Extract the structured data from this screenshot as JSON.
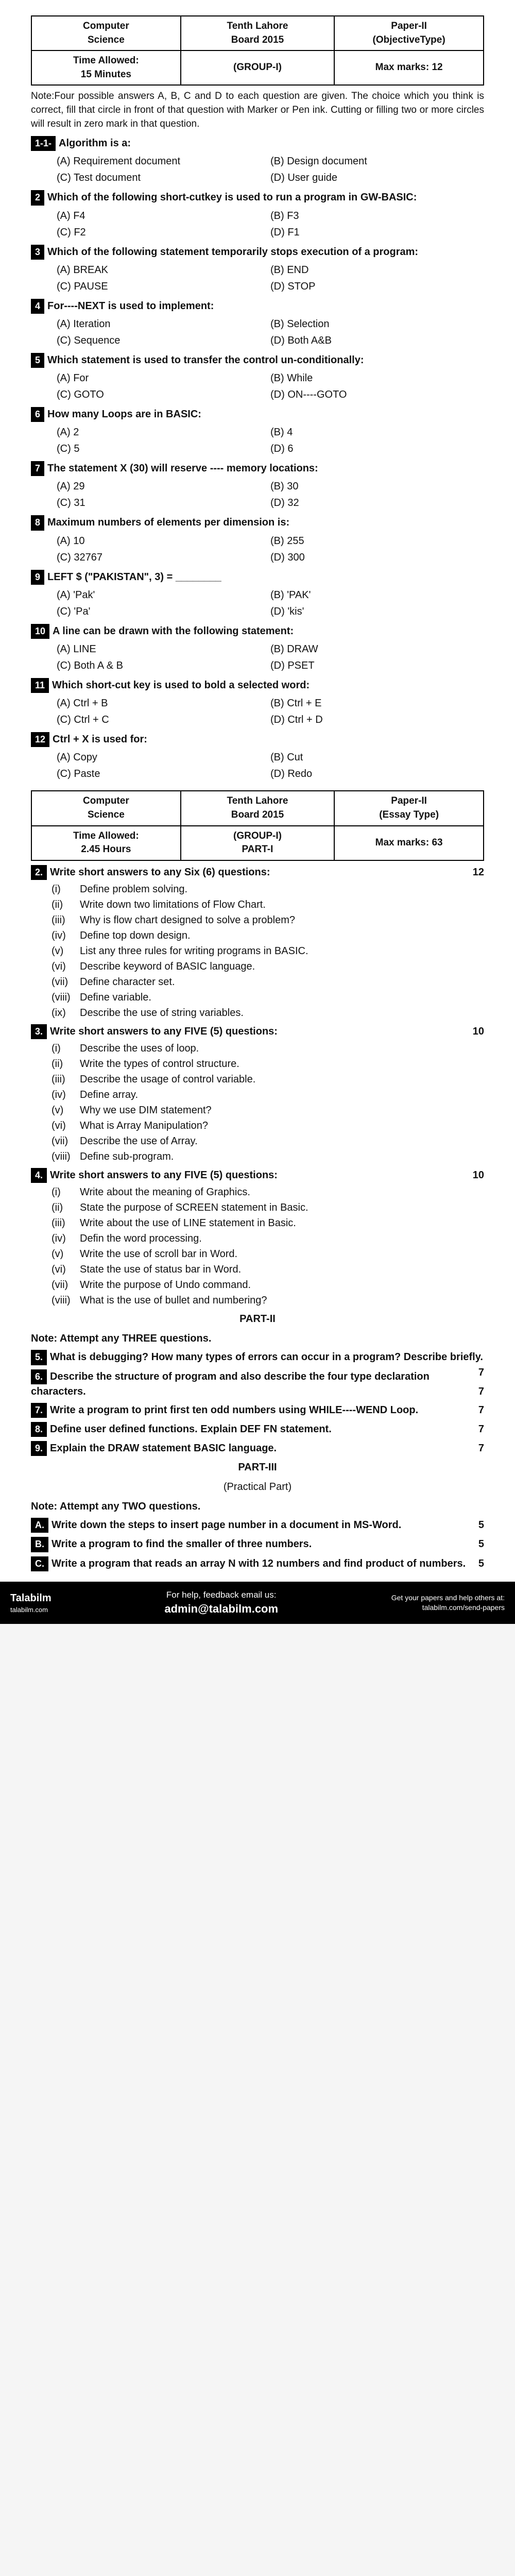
{
  "header1": {
    "c1a": "Computer",
    "c1b": "Science",
    "c2a": "Tenth Lahore",
    "c2b": "Board 2015",
    "c3a": "Paper-II",
    "c3b": "(ObjectiveType)",
    "r2c1a": "Time Allowed:",
    "r2c1b": "15 Minutes",
    "r2c2": "(GROUP-I)",
    "r2c3": "Max marks: 12"
  },
  "note1": "Note:Four possible answers A, B, C and D to each question are given. The choice which you think is correct, fill that circle in front of that question with Marker or Pen ink. Cutting or filling two or more circles will result in zero mark in that question.",
  "q1": {
    "num": "1-1-",
    "text": "Algorithm is a:",
    "a": "(A) Requirement document",
    "b": "(B) Design document",
    "c": "(C) Test document",
    "d": "(D) User guide"
  },
  "q2": {
    "num": "2",
    "text": "Which of the following short-cutkey is used to run a program in GW-BASIC:",
    "a": "(A) F4",
    "b": "(B) F3",
    "c": "(C) F2",
    "d": "(D) F1"
  },
  "q3": {
    "num": "3",
    "text": "Which of the following statement temporarily stops execution of a program:",
    "a": "(A) BREAK",
    "b": "(B) END",
    "c": "(C) PAUSE",
    "d": "(D) STOP"
  },
  "q4": {
    "num": "4",
    "text": "For----NEXT is used to implement:",
    "a": "(A) Iteration",
    "b": "(B) Selection",
    "c": "(C) Sequence",
    "d": "(D) Both A&B"
  },
  "q5": {
    "num": "5",
    "text": "Which statement is used to transfer the control un-conditionally:",
    "a": "(A) For",
    "b": "(B) While",
    "c": "(C) GOTO",
    "d": "(D) ON----GOTO"
  },
  "q6": {
    "num": "6",
    "text": "How many Loops are in BASIC:",
    "a": "(A) 2",
    "b": "(B) 4",
    "c": "(C) 5",
    "d": "(D) 6"
  },
  "q7": {
    "num": "7",
    "text": "The statement X (30) will reserve ---- memory locations:",
    "a": "(A) 29",
    "b": "(B) 30",
    "c": "(C) 31",
    "d": "(D) 32"
  },
  "q8": {
    "num": "8",
    "text": "Maximum numbers of elements per dimension is:",
    "a": "(A) 10",
    "b": "(B) 255",
    "c": "(C) 32767",
    "d": "(D) 300"
  },
  "q9": {
    "num": "9",
    "text": "LEFT $ (\"PAKISTAN\", 3) = ________",
    "a": "(A) 'Pak'",
    "b": "(B) 'PAK'",
    "c": "(C) 'Pa'",
    "d": "(D) 'kis'"
  },
  "q10": {
    "num": "10",
    "text": "A line can be drawn with the following statement:",
    "a": "(A) LINE",
    "b": "(B) DRAW",
    "c": "(C) Both A & B",
    "d": "(D) PSET"
  },
  "q11": {
    "num": "11",
    "text": "Which short-cut key is used to bold a selected word:",
    "a": "(A) Ctrl + B",
    "b": "(B) Ctrl + E",
    "c": "(C) Ctrl + C",
    "d": "(D) Ctrl + D"
  },
  "q12": {
    "num": "12",
    "text": "Ctrl + X is used for:",
    "a": "(A) Copy",
    "b": "(B) Cut",
    "c": "(C) Paste",
    "d": "(D) Redo"
  },
  "header2": {
    "c1a": "Computer",
    "c1b": "Science",
    "c2a": "Tenth Lahore",
    "c2b": "Board 2015",
    "c3a": "Paper-II",
    "c3b": "(Essay Type)",
    "r2c1a": "Time Allowed:",
    "r2c1b": "2.45 Hours",
    "r2c2a": "(GROUP-I)",
    "r2c2b": "PART-I",
    "r2c3": "Max marks: 63"
  },
  "s2": {
    "num": "2.",
    "text": "Write short answers to any Six (6) questions:",
    "marks": "12",
    "items": [
      {
        "n": "(i)",
        "t": "Define problem solving."
      },
      {
        "n": "(ii)",
        "t": "Write down two limitations of Flow Chart."
      },
      {
        "n": "(iii)",
        "t": "Why is flow chart designed to solve a problem?"
      },
      {
        "n": "(iv)",
        "t": "Define top down design."
      },
      {
        "n": "(v)",
        "t": "List any three rules for writing programs in BASIC."
      },
      {
        "n": "(vi)",
        "t": "Describe keyword of BASIC language."
      },
      {
        "n": "(vii)",
        "t": "Define character set."
      },
      {
        "n": "(viii)",
        "t": "Define variable."
      },
      {
        "n": "(ix)",
        "t": "Describe the use of string variables."
      }
    ]
  },
  "s3": {
    "num": "3.",
    "text": "Write short answers to any FIVE (5) questions:",
    "marks": "10",
    "items": [
      {
        "n": "(i)",
        "t": "Describe the uses of loop."
      },
      {
        "n": "(ii)",
        "t": "Write the types of control structure."
      },
      {
        "n": "(iii)",
        "t": "Describe the usage of control variable."
      },
      {
        "n": "(iv)",
        "t": "Define array."
      },
      {
        "n": "(v)",
        "t": "Why we use DIM statement?"
      },
      {
        "n": "(vi)",
        "t": "What is Array Manipulation?"
      },
      {
        "n": "(vii)",
        "t": "Describe the use of Array."
      },
      {
        "n": "(viii)",
        "t": "Define sub-program."
      }
    ]
  },
  "s4": {
    "num": "4.",
    "text": "Write short answers to any FIVE (5) questions:",
    "marks": "10",
    "items": [
      {
        "n": "(i)",
        "t": "Write about the meaning of Graphics."
      },
      {
        "n": "(ii)",
        "t": "State the purpose of SCREEN statement in Basic."
      },
      {
        "n": "(iii)",
        "t": "Write about the use of LINE statement in Basic."
      },
      {
        "n": "(iv)",
        "t": "Defin the word processing."
      },
      {
        "n": "(v)",
        "t": "Write the use of scroll bar in Word."
      },
      {
        "n": "(vi)",
        "t": "State the use of status bar in Word."
      },
      {
        "n": "(vii)",
        "t": "Write the purpose of Undo command."
      },
      {
        "n": "(viii)",
        "t": "What is the use of bullet and numbering?"
      }
    ]
  },
  "part2": "PART-II",
  "note2": "Note: Attempt any THREE questions.",
  "lq5": {
    "num": "5.",
    "text": "What is debugging? How many types of errors can occur in a program? Describe briefly.",
    "m": "7"
  },
  "lq6": {
    "num": "6.",
    "text": "Describe the structure of program and also describe the four type declaration characters.",
    "m": "7"
  },
  "lq7": {
    "num": "7.",
    "text": "Write a program to print first ten odd numbers using WHILE----WEND Loop.",
    "m": "7"
  },
  "lq8": {
    "num": "8.",
    "text": "Define user defined functions. Explain DEF FN statement.",
    "m": "7"
  },
  "lq9": {
    "num": "9.",
    "text": "Explain the DRAW statement BASIC language.",
    "m": "7"
  },
  "part3": "PART-III",
  "practical": "(Practical Part)",
  "note3": "Note: Attempt any TWO questions.",
  "lqA": {
    "num": "A.",
    "text": "Write down the steps to insert page number in a document in MS-Word.",
    "m": "5"
  },
  "lqB": {
    "num": "B.",
    "text": "Write a program to find the smaller of three numbers.",
    "m": "5"
  },
  "lqC": {
    "num": "C.",
    "text": "Write a program that reads an array N with 12 numbers and find product of numbers.",
    "m": "5"
  },
  "footer": {
    "brand": "Talabilm",
    "site": "talabilm.com",
    "helptext": "For help, feedback email us:",
    "email": "admin@talabilm.com",
    "righttext1": "Get your papers and help others at:",
    "righttext2": "talabilm.com/send-papers"
  }
}
